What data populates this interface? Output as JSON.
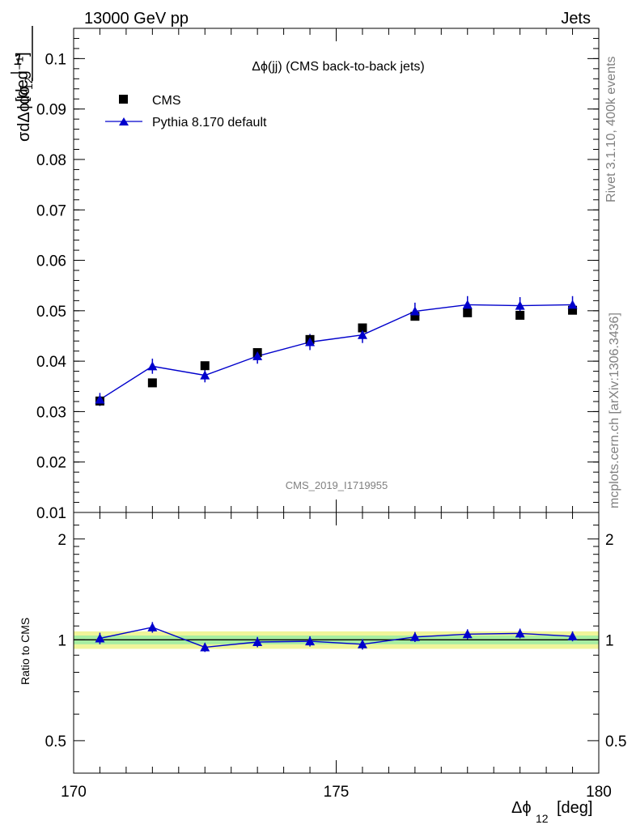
{
  "header": {
    "left": "13000 GeV pp",
    "right": "Jets"
  },
  "side": {
    "rivet": "Rivet 3.1.10,  400k events",
    "mcplots": "mcplots.cern.ch [arXiv:1306.3436]"
  },
  "colors": {
    "data": "#000000",
    "mc": "#0000cc",
    "band_outer": "#f0f59a",
    "band_inner": "#a6eda1",
    "ref_line": "#00aa00"
  },
  "chart_data": [
    {
      "type": "scatter",
      "title": "Δϕ(jj) (CMS back-to-back jets)",
      "watermark": "CMS_2019_I1719955",
      "ylabel": "1/σ dσ/dΔϕ12 [deg^-1]",
      "xlim": [
        170,
        180
      ],
      "ylim": [
        0.01,
        0.106
      ],
      "y_ticks": [
        0.01,
        0.02,
        0.03,
        0.04,
        0.05,
        0.06,
        0.07,
        0.08,
        0.09,
        0.1
      ],
      "y_tick_labels": [
        "0.01",
        "0.02",
        "0.03",
        "0.04",
        "0.05",
        "0.06",
        "0.07",
        "0.08",
        "0.09",
        "0.1"
      ],
      "legend_position": "top-left",
      "series": [
        {
          "name": "CMS",
          "marker": "square",
          "x": [
            170.5,
            171.5,
            172.5,
            173.5,
            174.5,
            175.5,
            176.5,
            177.5,
            178.5,
            179.5
          ],
          "y": [
            0.0321,
            0.0357,
            0.0391,
            0.0417,
            0.0443,
            0.0466,
            0.0489,
            0.0496,
            0.0491,
            0.0501
          ]
        },
        {
          "name": "Pythia 8.170 default",
          "marker": "triangle",
          "x": [
            170.5,
            171.5,
            172.5,
            173.5,
            174.5,
            175.5,
            176.5,
            177.5,
            178.5,
            179.5
          ],
          "y": [
            0.0324,
            0.039,
            0.0372,
            0.041,
            0.0438,
            0.0452,
            0.0499,
            0.0512,
            0.051,
            0.0512
          ],
          "yerr": [
            0.0013,
            0.0015,
            0.0014,
            0.0015,
            0.0016,
            0.0016,
            0.0017,
            0.0017,
            0.0017,
            0.0017
          ]
        }
      ]
    },
    {
      "type": "line",
      "ylabel": "Ratio to CMS",
      "xlabel": "Δϕ12 [deg]",
      "xlim": [
        170,
        180
      ],
      "ylim": [
        0.4,
        2.4
      ],
      "y_scale": "log",
      "x_ticks": [
        170,
        175,
        180
      ],
      "x_tick_labels": [
        "170",
        "175",
        "180"
      ],
      "y_ticks": [
        0.5,
        1,
        2
      ],
      "y_tick_labels": [
        "0.5",
        "1",
        "2"
      ],
      "series": [
        {
          "name": "Pythia 8.170 default",
          "x": [
            170.5,
            171.5,
            172.5,
            173.5,
            174.5,
            175.5,
            176.5,
            177.5,
            178.5,
            179.5
          ],
          "y": [
            1.01,
            1.09,
            0.95,
            0.985,
            0.99,
            0.97,
            1.02,
            1.04,
            1.045,
            1.025
          ],
          "yerr": [
            0.04,
            0.04,
            0.03,
            0.035,
            0.035,
            0.035,
            0.035,
            0.035,
            0.035,
            0.035
          ]
        }
      ],
      "band": {
        "inner": 0.03,
        "outer": 0.06
      }
    }
  ]
}
